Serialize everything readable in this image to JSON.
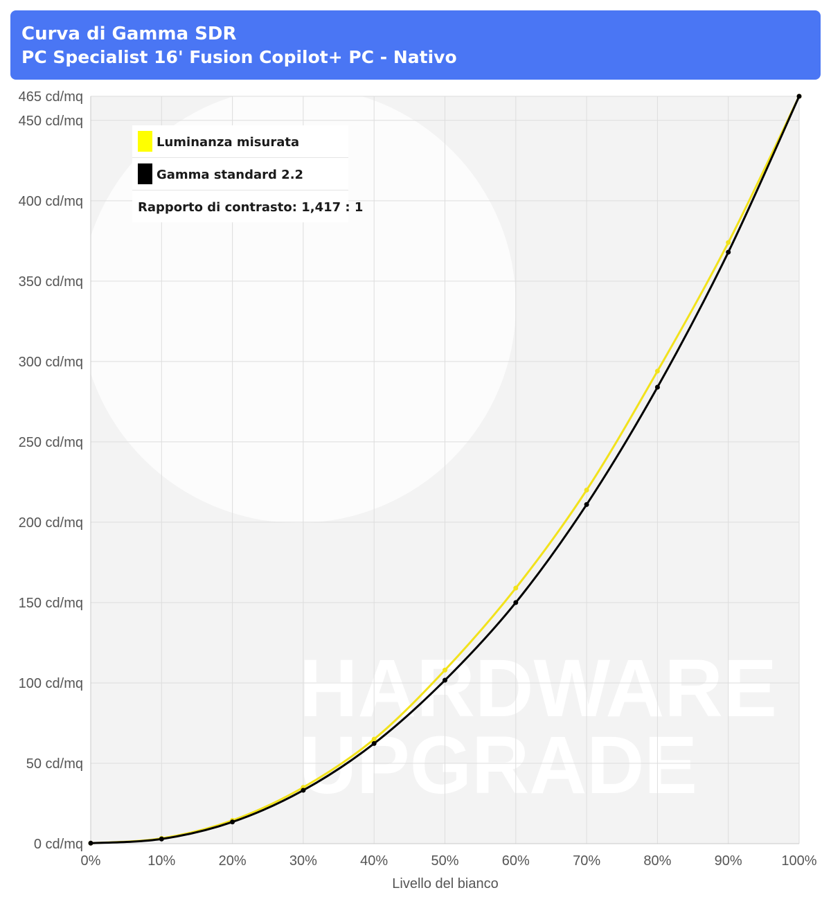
{
  "header": {
    "title": "Curva di Gamma SDR",
    "subtitle": "PC Specialist 16' Fusion Copilot+ PC - Nativo"
  },
  "colors": {
    "header_bg": "#4a76f4",
    "measured": "#f2e21c",
    "measured_legend": "#ffff00",
    "standard": "#000000",
    "plot_bg": "#f3f3f3",
    "grid": "#dddddd"
  },
  "watermark": {
    "line1": "HARDWARE",
    "line2": "UPGRADE"
  },
  "legend": {
    "measured_label": "Luminanza misurata",
    "standard_label": "Gamma standard 2.2",
    "contrast_label": "Rapporto di contrasto: 1,417 : 1",
    "placement": "top-left"
  },
  "chart_data": {
    "type": "line",
    "xlabel": "Livello del bianco",
    "x": [
      0,
      10,
      20,
      30,
      40,
      50,
      60,
      70,
      80,
      90,
      100
    ],
    "x_tick_labels": [
      "0%",
      "10%",
      "20%",
      "30%",
      "40%",
      "50%",
      "60%",
      "70%",
      "80%",
      "90%",
      "100%"
    ],
    "xlim": [
      0,
      100
    ],
    "ylim": [
      0,
      465
    ],
    "y_ticks": [
      0,
      50,
      100,
      150,
      200,
      250,
      300,
      350,
      400,
      450,
      465
    ],
    "y_tick_labels": [
      "0 cd/mq",
      "50 cd/mq",
      "100 cd/mq",
      "150 cd/mq",
      "200 cd/mq",
      "250 cd/mq",
      "300 cd/mq",
      "350 cd/mq",
      "400 cd/mq",
      "450 cd/mq",
      "465 cd/mq"
    ],
    "grid": true,
    "series": [
      {
        "name": "Luminanza misurata",
        "color": "#f2e21c",
        "values": [
          0.3,
          3.3,
          14.5,
          35,
          65,
          108,
          159,
          220,
          294,
          374,
          465
        ]
      },
      {
        "name": "Gamma standard 2.2",
        "color": "#000000",
        "values": [
          0.3,
          2.9,
          13.5,
          33.2,
          62.3,
          101.7,
          150,
          211,
          284,
          368,
          465
        ]
      }
    ]
  }
}
